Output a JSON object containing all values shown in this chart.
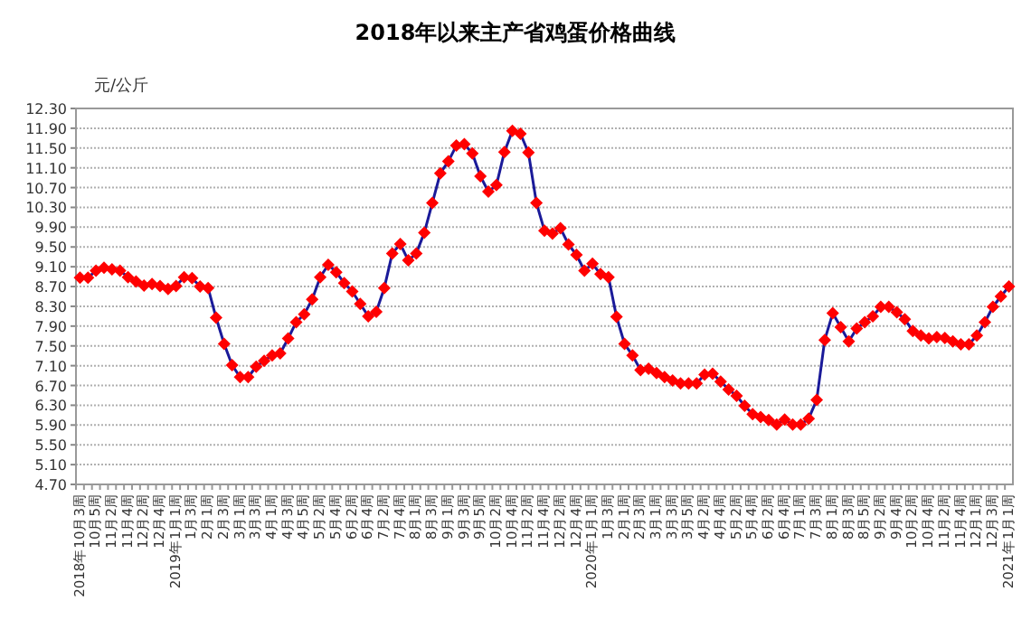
{
  "chart_data": {
    "type": "line",
    "title": "2018年以来主产省鸡蛋价格曲线",
    "ylabel": "元/公斤",
    "categories": [
      "2018年10月3周",
      null,
      "10月5周",
      null,
      "11月2周",
      null,
      "11月4周",
      null,
      "12月2周",
      null,
      "12月4周",
      null,
      "2019年1月1周",
      null,
      "1月3周",
      null,
      "2月1周",
      null,
      "2月3周",
      null,
      "3月1周",
      null,
      "3月3周",
      null,
      "4月1周",
      null,
      "4月3周",
      null,
      "4月5周",
      null,
      "5月2周",
      null,
      "5月4周",
      null,
      "6月2周",
      null,
      "6月4周",
      null,
      "7月2周",
      null,
      "7月4周",
      null,
      "8月1周",
      null,
      "8月3周",
      null,
      "9月1周",
      null,
      "9月3周",
      null,
      "9月5周",
      null,
      "10月2周",
      null,
      "10月4周",
      null,
      "11月2周",
      null,
      "11月4周",
      null,
      "12月2周",
      null,
      "12月4周",
      null,
      "2020年1月1周",
      null,
      "1月3周",
      null,
      "2月1周",
      null,
      "2月3周",
      null,
      "3月1周",
      null,
      "3月3周",
      null,
      "3月5周",
      null,
      "4月2周",
      null,
      "4月4周",
      null,
      "5月2周",
      null,
      "5月4周",
      null,
      "6月2周",
      null,
      "6月4周",
      null,
      "7月1周",
      null,
      "7月3周",
      null,
      "8月1周",
      null,
      "8月3周",
      null,
      "8月5周",
      null,
      "9月2周",
      null,
      "9月4周",
      null,
      "10月2周",
      null,
      "10月4周",
      null,
      "11月2周",
      null,
      "11月4周",
      null,
      "12月1周",
      null,
      "12月3周",
      null,
      "2021年1月1周"
    ],
    "series": [
      {
        "color": "#ff0000",
        "values": [
          8.88,
          8.88,
          9.02,
          9.08,
          9.05,
          9.02,
          8.89,
          8.8,
          8.72,
          8.75,
          8.71,
          8.65,
          8.71,
          8.89,
          8.87,
          8.7,
          8.67,
          8.07,
          7.54,
          7.11,
          6.87,
          6.87,
          7.08,
          7.2,
          7.31,
          7.35,
          7.65,
          7.98,
          8.14,
          8.44,
          8.89,
          9.14,
          8.99,
          8.77,
          8.6,
          8.35,
          8.1,
          8.19,
          8.67,
          9.37,
          9.56,
          9.23,
          9.37,
          9.79,
          10.39,
          10.99,
          11.23,
          11.55,
          11.58,
          11.39,
          10.93,
          10.62,
          10.75,
          11.42,
          11.85,
          11.79,
          11.41,
          10.39,
          9.83,
          9.77,
          9.88,
          9.55,
          9.34,
          9.02,
          9.16,
          8.95,
          8.89,
          8.09,
          7.54,
          7.31,
          7.01,
          7.04,
          6.95,
          6.87,
          6.8,
          6.74,
          6.74,
          6.74,
          6.92,
          6.94,
          6.78,
          6.62,
          6.49,
          6.29,
          6.12,
          6.06,
          6.0,
          5.91,
          6.01,
          5.91,
          5.91,
          6.03,
          6.41,
          7.62,
          8.16,
          7.88,
          7.59,
          7.85,
          7.98,
          8.1,
          8.29,
          8.29,
          8.18,
          8.04,
          7.8,
          7.71,
          7.65,
          7.68,
          7.66,
          7.59,
          7.53,
          7.53,
          7.71,
          7.98,
          8.29,
          8.5,
          8.7
        ]
      }
    ],
    "ylim": [
      4.7,
      12.3
    ],
    "yticks": [
      {
        "value": 4.7,
        "label": "4.70"
      },
      {
        "value": 5.1,
        "label": "5.10"
      },
      {
        "value": 5.5,
        "label": "5.50"
      },
      {
        "value": 5.9,
        "label": "5.90"
      },
      {
        "value": 6.3,
        "label": "6.30"
      },
      {
        "value": 6.7,
        "label": "6.70"
      },
      {
        "value": 7.1,
        "label": "7.10"
      },
      {
        "value": 7.5,
        "label": "7.50"
      },
      {
        "value": 7.9,
        "label": "7.90"
      },
      {
        "value": 8.3,
        "label": "8.30"
      },
      {
        "value": 8.7,
        "label": "8.70"
      },
      {
        "value": 9.1,
        "label": "9.10"
      },
      {
        "value": 9.5,
        "label": "9.50"
      },
      {
        "value": 9.9,
        "label": "9.90"
      },
      {
        "value": 10.3,
        "label": "10.30"
      },
      {
        "value": 10.7,
        "label": "10.70"
      },
      {
        "value": 11.1,
        "label": "11.10"
      },
      {
        "value": 11.5,
        "label": "11.50"
      },
      {
        "value": 11.9,
        "label": "11.90"
      },
      {
        "value": 12.3,
        "label": "12.30"
      }
    ],
    "grid": "y",
    "marker": "diamond",
    "line_style": "solid"
  }
}
